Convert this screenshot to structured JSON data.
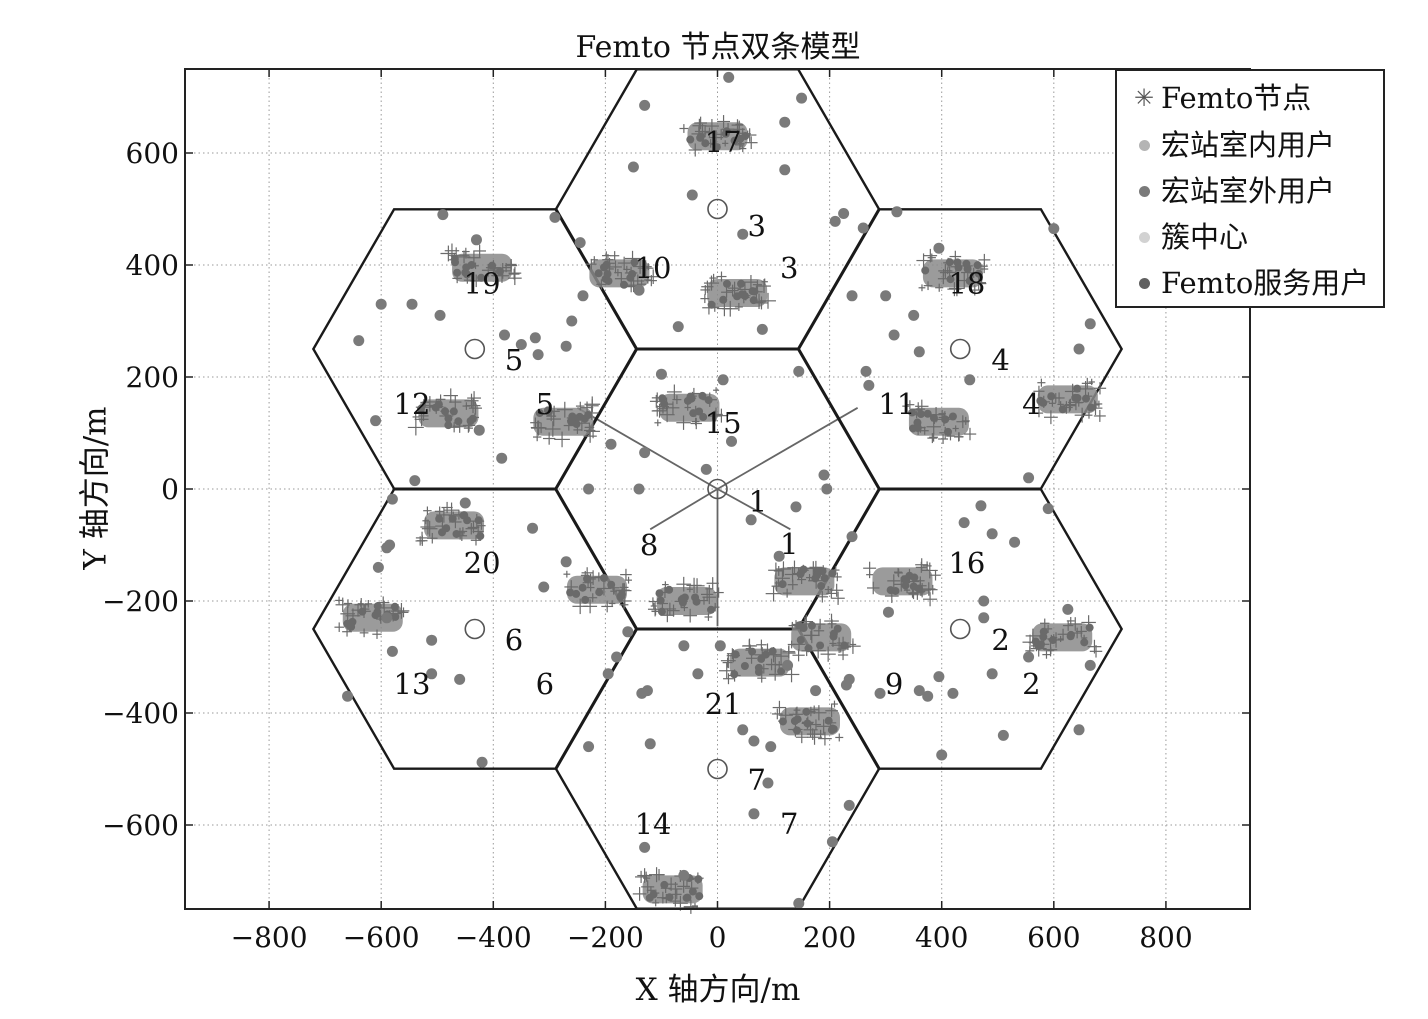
{
  "chart_data": {
    "type": "scatter",
    "title": "Femto 节点双条模型",
    "xlabel": "X 轴方向/m",
    "ylabel": "Y 轴方向/m",
    "xlim": [
      -950,
      950
    ],
    "ylim": [
      -750,
      750
    ],
    "xticks": [
      -800,
      -600,
      -400,
      -200,
      0,
      200,
      400,
      600,
      800
    ],
    "yticks": [
      -600,
      -400,
      -200,
      0,
      200,
      400,
      600
    ],
    "xtick_labels": [
      "−800",
      "−600",
      "−400",
      "−200",
      "0",
      "200",
      "400",
      "600",
      "800"
    ],
    "ytick_labels": [
      "−600",
      "−400",
      "−200",
      "0",
      "200",
      "400",
      "600"
    ],
    "grid": true,
    "legend_position": "top-right",
    "hexagon_circumradius": 288,
    "cells": [
      {
        "id": 1,
        "center": [
          0,
          0
        ]
      },
      {
        "id": 2,
        "center": [
          433,
          -250
        ]
      },
      {
        "id": 3,
        "center": [
          0,
          500
        ]
      },
      {
        "id": 4,
        "center": [
          433,
          250
        ]
      },
      {
        "id": 5,
        "center": [
          -433,
          250
        ]
      },
      {
        "id": 6,
        "center": [
          -433,
          -250
        ]
      },
      {
        "id": 7,
        "center": [
          0,
          -500
        ]
      }
    ],
    "sector_lines": [
      {
        "from": [
          0,
          0
        ],
        "to": [
          -250,
          145
        ]
      },
      {
        "from": [
          0,
          0
        ],
        "to": [
          250,
          145
        ]
      },
      {
        "from": [
          0,
          0
        ],
        "to": [
          -120,
          -72
        ]
      },
      {
        "from": [
          0,
          0
        ],
        "to": [
          130,
          -72
        ]
      },
      {
        "from": [
          0,
          0
        ],
        "to": [
          0,
          -245
        ]
      }
    ],
    "annotations": [
      {
        "text": "1",
        "x": 72,
        "y": -22
      },
      {
        "text": "1",
        "x": 128,
        "y": -98
      },
      {
        "text": "2",
        "x": 505,
        "y": -270
      },
      {
        "text": "2",
        "x": 560,
        "y": -348
      },
      {
        "text": "3",
        "x": 70,
        "y": 470
      },
      {
        "text": "3",
        "x": 128,
        "y": 395
      },
      {
        "text": "4",
        "x": 505,
        "y": 230
      },
      {
        "text": "4",
        "x": 560,
        "y": 152
      },
      {
        "text": "5",
        "x": -363,
        "y": 230
      },
      {
        "text": "5",
        "x": -308,
        "y": 152
      },
      {
        "text": "6",
        "x": -363,
        "y": -270
      },
      {
        "text": "6",
        "x": -308,
        "y": -348
      },
      {
        "text": "7",
        "x": 70,
        "y": -520
      },
      {
        "text": "7",
        "x": 128,
        "y": -598
      },
      {
        "text": "8",
        "x": -122,
        "y": -100
      },
      {
        "text": "9",
        "x": 315,
        "y": -348
      },
      {
        "text": "10",
        "x": -115,
        "y": 395
      },
      {
        "text": "11",
        "x": 320,
        "y": 152
      },
      {
        "text": "12",
        "x": -545,
        "y": 152
      },
      {
        "text": "13",
        "x": -545,
        "y": -348
      },
      {
        "text": "14",
        "x": -115,
        "y": -598
      },
      {
        "text": "15",
        "x": 10,
        "y": 118
      },
      {
        "text": "16",
        "x": 445,
        "y": -132
      },
      {
        "text": "17",
        "x": 10,
        "y": 620
      },
      {
        "text": "18",
        "x": 445,
        "y": 367
      },
      {
        "text": "19",
        "x": -420,
        "y": 367
      },
      {
        "text": "20",
        "x": -420,
        "y": -132
      },
      {
        "text": "21",
        "x": 10,
        "y": -384
      }
    ],
    "femto_clusters": [
      {
        "x": 0,
        "y": 630
      },
      {
        "x": -175,
        "y": 385
      },
      {
        "x": 35,
        "y": 350
      },
      {
        "x": -420,
        "y": 395
      },
      {
        "x": 420,
        "y": 385
      },
      {
        "x": -480,
        "y": 135
      },
      {
        "x": -275,
        "y": 120
      },
      {
        "x": -50,
        "y": 145
      },
      {
        "x": 395,
        "y": 120
      },
      {
        "x": 625,
        "y": 160
      },
      {
        "x": -470,
        "y": -65
      },
      {
        "x": -215,
        "y": -180
      },
      {
        "x": -55,
        "y": -200
      },
      {
        "x": 155,
        "y": -165
      },
      {
        "x": 330,
        "y": -165
      },
      {
        "x": -615,
        "y": -230
      },
      {
        "x": 185,
        "y": -265
      },
      {
        "x": 75,
        "y": -310
      },
      {
        "x": 165,
        "y": -415
      },
      {
        "x": 615,
        "y": -265
      },
      {
        "x": -80,
        "y": -715
      }
    ],
    "macro_outdoor_users": [
      [
        20,
        735
      ],
      [
        -130,
        685
      ],
      [
        150,
        698
      ],
      [
        120,
        655
      ],
      [
        -150,
        575
      ],
      [
        120,
        570
      ],
      [
        -45,
        525
      ],
      [
        210,
        478
      ],
      [
        260,
        466
      ],
      [
        225,
        492
      ],
      [
        320,
        495
      ],
      [
        45,
        455
      ],
      [
        -490,
        490
      ],
      [
        -430,
        445
      ],
      [
        -290,
        485
      ],
      [
        -245,
        440
      ],
      [
        -600,
        330
      ],
      [
        -545,
        330
      ],
      [
        -495,
        310
      ],
      [
        -380,
        275
      ],
      [
        -350,
        258
      ],
      [
        -325,
        270
      ],
      [
        -320,
        240
      ],
      [
        -270,
        255
      ],
      [
        -260,
        300
      ],
      [
        -640,
        265
      ],
      [
        -610,
        122
      ],
      [
        -425,
        105
      ],
      [
        -385,
        55
      ],
      [
        -540,
        15
      ],
      [
        -240,
        345
      ],
      [
        -140,
        355
      ],
      [
        -70,
        290
      ],
      [
        80,
        285
      ],
      [
        240,
        345
      ],
      [
        300,
        345
      ],
      [
        315,
        275
      ],
      [
        350,
        310
      ],
      [
        395,
        430
      ],
      [
        360,
        245
      ],
      [
        450,
        195
      ],
      [
        600,
        465
      ],
      [
        665,
        295
      ],
      [
        645,
        250
      ],
      [
        270,
        185
      ],
      [
        265,
        210
      ],
      [
        145,
        210
      ],
      [
        10,
        195
      ],
      [
        -100,
        205
      ],
      [
        -190,
        80
      ],
      [
        -130,
        65
      ],
      [
        -20,
        35
      ],
      [
        25,
        85
      ],
      [
        140,
        -32
      ],
      [
        190,
        25
      ],
      [
        195,
        0
      ],
      [
        60,
        -55
      ],
      [
        110,
        -120
      ],
      [
        -230,
        0
      ],
      [
        -140,
        0
      ],
      [
        -450,
        -25
      ],
      [
        -580,
        -18
      ],
      [
        -585,
        -100
      ],
      [
        -590,
        -105
      ],
      [
        -605,
        -140
      ],
      [
        -590,
        -230
      ],
      [
        -580,
        -290
      ],
      [
        -510,
        -270
      ],
      [
        -510,
        -330
      ],
      [
        -460,
        -340
      ],
      [
        -330,
        -70
      ],
      [
        -310,
        -175
      ],
      [
        -270,
        -130
      ],
      [
        -160,
        -255
      ],
      [
        -180,
        -300
      ],
      [
        -195,
        -330
      ],
      [
        -135,
        -365
      ],
      [
        -125,
        -360
      ],
      [
        -60,
        -280
      ],
      [
        -35,
        -330
      ],
      [
        5,
        -280
      ],
      [
        45,
        -430
      ],
      [
        65,
        -450
      ],
      [
        95,
        -460
      ],
      [
        125,
        -315
      ],
      [
        175,
        -360
      ],
      [
        230,
        -350
      ],
      [
        235,
        -340
      ],
      [
        240,
        -85
      ],
      [
        305,
        -220
      ],
      [
        290,
        -365
      ],
      [
        360,
        -360
      ],
      [
        375,
        -370
      ],
      [
        395,
        -335
      ],
      [
        420,
        -365
      ],
      [
        400,
        -475
      ],
      [
        440,
        -60
      ],
      [
        470,
        -30
      ],
      [
        490,
        -80
      ],
      [
        530,
        -95
      ],
      [
        555,
        20
      ],
      [
        590,
        -35
      ],
      [
        475,
        -200
      ],
      [
        475,
        -230
      ],
      [
        490,
        -330
      ],
      [
        510,
        -440
      ],
      [
        555,
        -300
      ],
      [
        625,
        -215
      ],
      [
        665,
        -315
      ],
      [
        645,
        -430
      ],
      [
        -230,
        -460
      ],
      [
        -120,
        -455
      ],
      [
        -130,
        -640
      ],
      [
        -60,
        -690
      ],
      [
        65,
        -580
      ],
      [
        90,
        -525
      ],
      [
        205,
        -630
      ],
      [
        235,
        -565
      ],
      [
        145,
        -740
      ],
      [
        -420,
        -488
      ],
      [
        -660,
        -370
      ]
    ]
  },
  "legend": {
    "items": [
      {
        "label": "Femto节点",
        "marker": "star",
        "color": "#555555"
      },
      {
        "label": "宏站室内用户",
        "marker": "dot",
        "color": "#b4b4b4"
      },
      {
        "label": "宏站室外用户",
        "marker": "dot",
        "color": "#7a7a7a"
      },
      {
        "label": "簇中心",
        "marker": "dot",
        "color": "#d2d2d2"
      },
      {
        "label": "Femto服务用户",
        "marker": "dot",
        "color": "#606060"
      }
    ]
  },
  "colors": {
    "hex_line": "#1a1a1a",
    "grid": "#9a9a9a",
    "femto": "#6a6a6a",
    "outdoor_user": "#7a7a7a",
    "sector_line": "#666666"
  }
}
